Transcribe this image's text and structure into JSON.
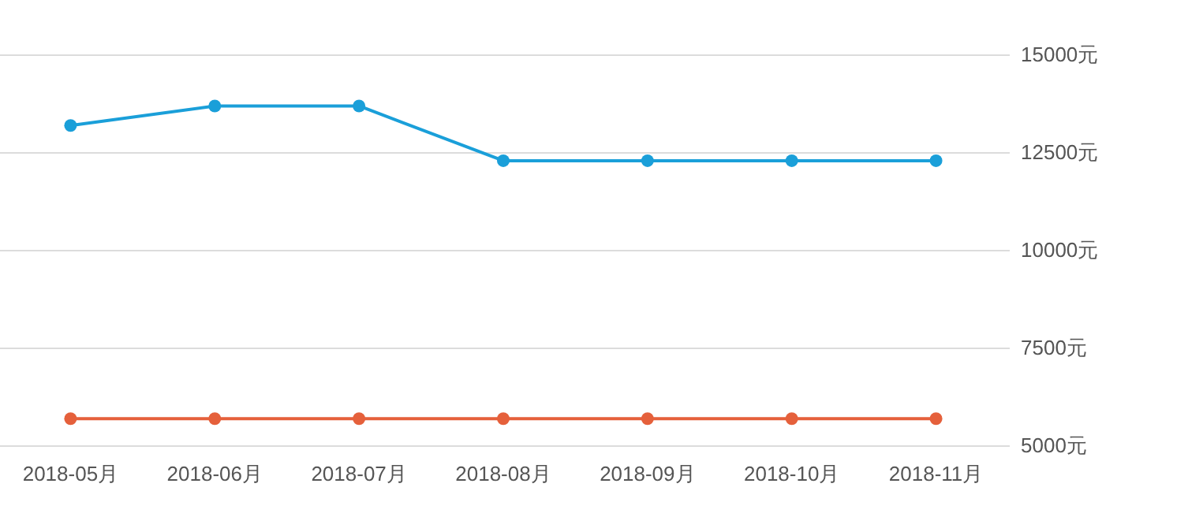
{
  "chart_data": {
    "type": "line",
    "categories": [
      "2018-05月",
      "2018-06月",
      "2018-07月",
      "2018-08月",
      "2018-09月",
      "2018-10月",
      "2018-11月"
    ],
    "series": [
      {
        "color": "#1a9fd9",
        "values": [
          13200,
          13700,
          13700,
          12300,
          12300,
          12300,
          12300
        ]
      },
      {
        "color": "#e5603b",
        "values": [
          5700,
          5700,
          5700,
          5700,
          5700,
          5700,
          5700
        ]
      }
    ],
    "ylim": [
      5000,
      15000
    ],
    "yticks": [
      {
        "value": 5000,
        "label": "5000元"
      },
      {
        "value": 7500,
        "label": "7500元"
      },
      {
        "value": 10000,
        "label": "10000元"
      },
      {
        "value": 12500,
        "label": "12500元"
      },
      {
        "value": 15000,
        "label": "15000元"
      }
    ],
    "grid": "y",
    "marker": "circle",
    "line_style": "solid"
  }
}
